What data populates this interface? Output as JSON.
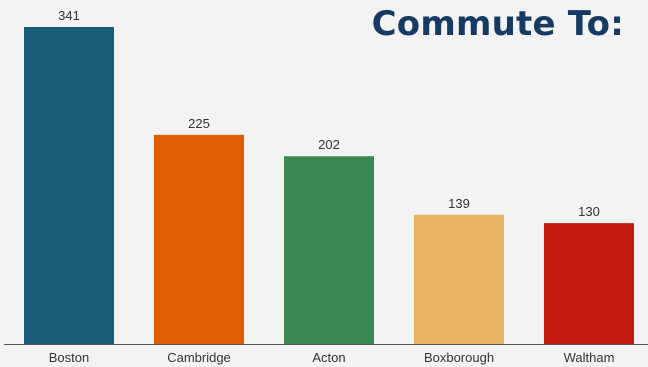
{
  "chart_data": {
    "type": "bar",
    "title": "Commute To:",
    "categories": [
      "Boston",
      "Cambridge",
      "Acton",
      "Boxborough",
      "Waltham"
    ],
    "values": [
      341,
      225,
      202,
      139,
      130
    ],
    "colors": [
      "#175d78",
      "#e05c00",
      "#3d8752",
      "#e8b463",
      "#c2190e"
    ],
    "xlabel": "",
    "ylabel": "",
    "ylim": [
      0,
      341
    ],
    "grid": false,
    "legend": "none",
    "data_labels": true
  },
  "style": {
    "background": "#f3f3f3",
    "title_color": "#173a63",
    "axis_color": "#555555"
  }
}
